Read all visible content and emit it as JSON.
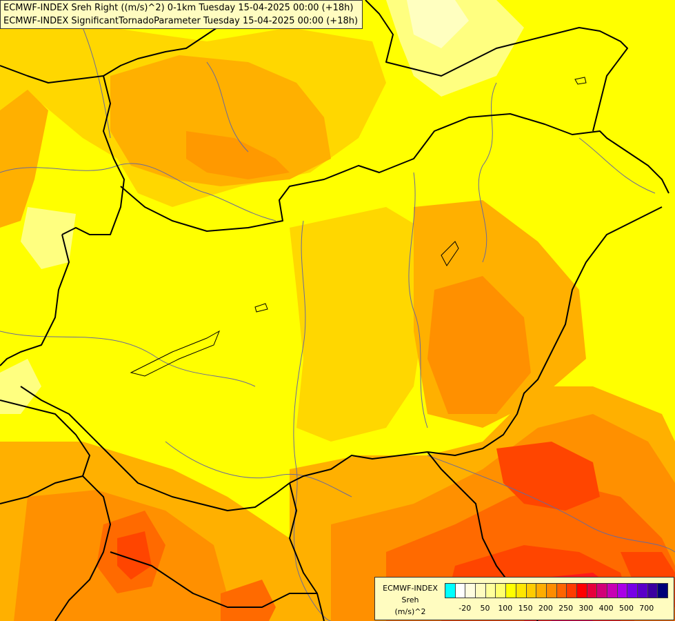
{
  "header": {
    "line1": "ECMWF-INDEX Sreh Right ((m/s)^2) 0-1km Tuesday 15-04-2025 00:00 (+18h)",
    "line2": "ECMWF-INDEX SignificantTornadoParameter Tuesday 15-04-2025 00:00 (+18h)"
  },
  "legend": {
    "product": "ECMWF-INDEX",
    "variable": "Sreh",
    "unit": "(m/s)^2",
    "colors": [
      "#00ffff",
      "#ffffff",
      "#fffde0",
      "#fffcc0",
      "#ffff9b",
      "#ffff6e",
      "#ffff00",
      "#ffe600",
      "#ffcc00",
      "#ffad00",
      "#ff8c00",
      "#ff6400",
      "#ff3c00",
      "#ff0000",
      "#e6003c",
      "#d20078",
      "#c800b4",
      "#aa00e6",
      "#7800e6",
      "#5a00c8",
      "#3c00a0",
      "#000078"
    ],
    "ticks": [
      {
        "label": "-20",
        "index": 1
      },
      {
        "label": "50",
        "index": 3
      },
      {
        "label": "100",
        "index": 5
      },
      {
        "label": "150",
        "index": 7
      },
      {
        "label": "200",
        "index": 9
      },
      {
        "label": "250",
        "index": 11
      },
      {
        "label": "300",
        "index": 13
      },
      {
        "label": "400",
        "index": 15
      },
      {
        "label": "500",
        "index": 17
      },
      {
        "label": "700",
        "index": 19
      }
    ]
  },
  "map": {
    "field_colors": {
      "base": "#ffff00",
      "light": "#ffff80",
      "pale": "#ffffc0",
      "gold": "#ffd700",
      "amber": "#ffb000",
      "orange": "#ff9000",
      "deep_orange": "#ff6a00",
      "red_orange": "#ff4500",
      "red": "#ff1a1a",
      "crimson": "#e6004c"
    },
    "border_color": "#000000",
    "river_color": "#6a6a9a"
  }
}
